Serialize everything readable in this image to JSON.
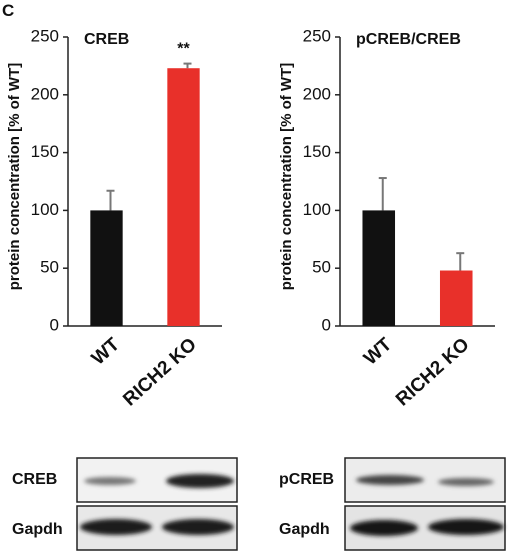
{
  "panel_label": "C",
  "chart_data": [
    {
      "type": "bar",
      "title": "CREB",
      "y_label": "protein concentration [% of WT]",
      "categories": [
        "WT",
        "RICH2 KO"
      ],
      "values": [
        100,
        223
      ],
      "errors": [
        17,
        4
      ],
      "colors": [
        "#111111",
        "#e8302a"
      ],
      "annotations": [
        null,
        "**"
      ],
      "ylim": [
        0,
        250
      ],
      "yticks": [
        0,
        50,
        100,
        150,
        200,
        250
      ]
    },
    {
      "type": "bar",
      "title": "pCREB/CREB",
      "y_label": "protein concentration [% of WT]",
      "categories": [
        "WT",
        "RICH2 KO"
      ],
      "values": [
        100,
        48
      ],
      "errors": [
        28,
        15
      ],
      "colors": [
        "#111111",
        "#e8302a"
      ],
      "annotations": [
        null,
        null
      ],
      "ylim": [
        0,
        250
      ],
      "yticks": [
        0,
        50,
        100,
        150,
        200,
        250
      ]
    }
  ],
  "blots": [
    {
      "label": "CREB"
    },
    {
      "label": "Gapdh"
    },
    {
      "label": "pCREB"
    },
    {
      "label": "Gapdh"
    }
  ]
}
